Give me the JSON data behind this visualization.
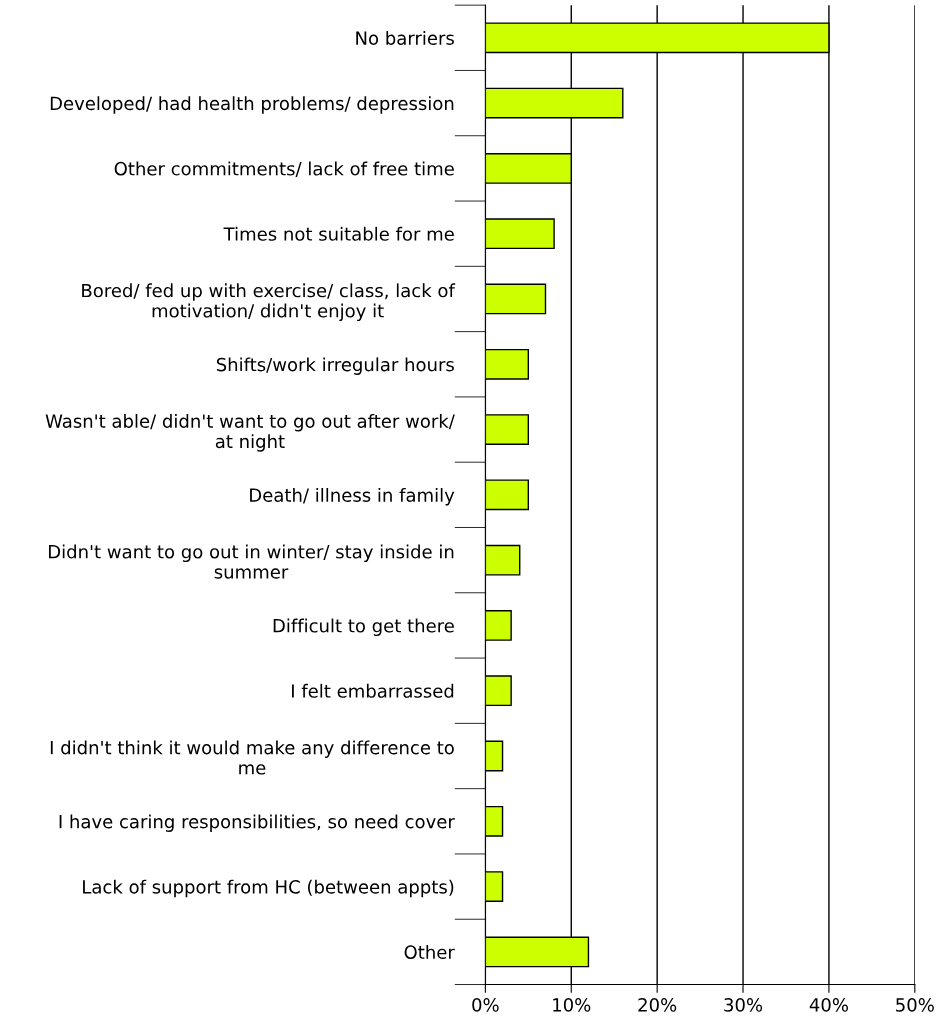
{
  "chart_data": {
    "type": "bar",
    "orientation": "horizontal",
    "categories": [
      "No barriers",
      "Developed/ had health problems/ depression",
      "Other commitments/ lack of free time",
      "Times not suitable for me",
      "Bored/ fed up with exercise/ class, lack of\nmotivation/ didn't enjoy it",
      "Shifts/work irregular hours",
      "Wasn't able/ didn't want to go out after work/\nat night",
      "Death/ illness in family",
      "Didn't want to go out in winter/ stay inside in\nsummer",
      "Difficult to get there",
      "I felt embarrassed",
      "I didn't think it would make any difference to\nme",
      "I have caring responsibilities, so need cover",
      "Lack of support from HC (between appts)",
      "Other"
    ],
    "values": [
      40,
      16,
      10,
      8,
      7,
      5,
      5,
      5,
      4,
      3,
      3,
      2,
      2,
      2,
      12
    ],
    "color": "#ccff00",
    "xlim": [
      0,
      50
    ],
    "xticks": [
      {
        "value": 0,
        "label": "0%"
      },
      {
        "value": 10,
        "label": "10%"
      },
      {
        "value": 20,
        "label": "20%"
      },
      {
        "value": 30,
        "label": "30%"
      },
      {
        "value": 40,
        "label": "40%"
      },
      {
        "value": 50,
        "label": "50%"
      }
    ],
    "grid": "x",
    "legend": false
  }
}
